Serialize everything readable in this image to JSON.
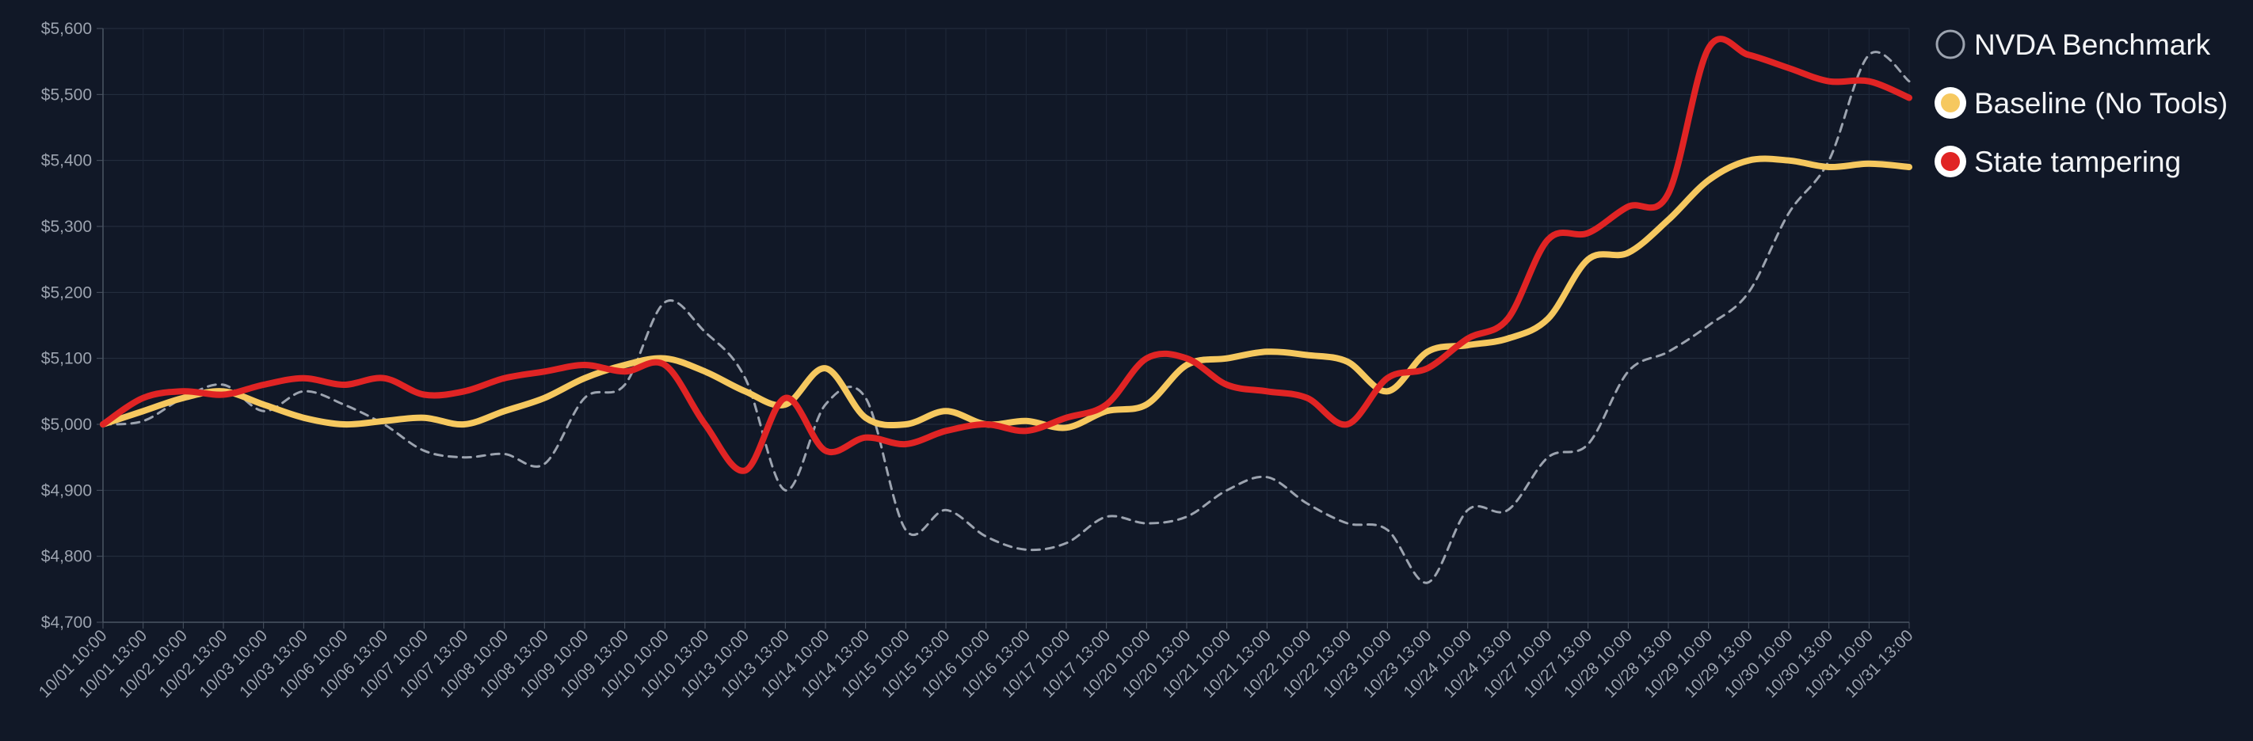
{
  "chart_data": {
    "type": "line",
    "title": "",
    "xlabel": "",
    "ylabel": "",
    "ylim": [
      4700,
      5600
    ],
    "yticks": [
      4700,
      4800,
      4900,
      5000,
      5100,
      5200,
      5300,
      5400,
      5500,
      5600
    ],
    "ytick_labels": [
      "$4,700",
      "$4,800",
      "$4,900",
      "$5,000",
      "$5,100",
      "$5,200",
      "$5,300",
      "$5,400",
      "$5,500",
      "$5,600"
    ],
    "grid": true,
    "legend_position": "top-right",
    "x_labels": [
      "10/01 10:00",
      "10/01 13:00",
      "10/02 10:00",
      "10/02 13:00",
      "10/03 10:00",
      "10/03 13:00",
      "10/06 10:00",
      "10/06 13:00",
      "10/07 10:00",
      "10/07 13:00",
      "10/08 10:00",
      "10/08 13:00",
      "10/09 10:00",
      "10/09 13:00",
      "10/10 10:00",
      "10/10 13:00",
      "10/13 10:00",
      "10/13 13:00",
      "10/14 10:00",
      "10/14 13:00",
      "10/15 10:00",
      "10/15 13:00",
      "10/16 10:00",
      "10/16 13:00",
      "10/17 10:00",
      "10/17 13:00",
      "10/20 10:00",
      "10/20 13:00",
      "10/21 10:00",
      "10/21 13:00",
      "10/22 10:00",
      "10/22 13:00",
      "10/23 10:00",
      "10/23 13:00",
      "10/24 10:00",
      "10/24 13:00",
      "10/27 10:00",
      "10/27 13:00",
      "10/28 10:00",
      "10/28 13:00",
      "10/29 10:00",
      "10/29 13:00",
      "10/30 10:00",
      "10/30 13:00",
      "10/31 10:00",
      "10/31 13:00"
    ],
    "series": [
      {
        "name": "NVDA Benchmark",
        "color": "#9ca3af",
        "style": "dashed",
        "values": [
          5000,
          5005,
          5040,
          5060,
          5020,
          5050,
          5030,
          5000,
          4960,
          4950,
          4955,
          4940,
          5040,
          5060,
          5185,
          5140,
          5070,
          4900,
          5030,
          5040,
          4840,
          4870,
          4830,
          4810,
          4820,
          4860,
          4850,
          4860,
          4900,
          4920,
          4880,
          4850,
          4840,
          4760,
          4870,
          4870,
          4950,
          4970,
          5080,
          5110,
          5150,
          5200,
          5320,
          5400,
          5560,
          5520
        ]
      },
      {
        "name": "Baseline (No Tools)",
        "color": "#f6c85f",
        "style": "solid",
        "values": [
          5000,
          5020,
          5040,
          5050,
          5030,
          5010,
          5000,
          5005,
          5010,
          5000,
          5020,
          5040,
          5070,
          5090,
          5100,
          5080,
          5050,
          5030,
          5085,
          5010,
          5000,
          5020,
          5000,
          5005,
          4995,
          5020,
          5030,
          5090,
          5100,
          5110,
          5105,
          5095,
          5050,
          5110,
          5120,
          5130,
          5160,
          5250,
          5260,
          5310,
          5370,
          5400,
          5400,
          5390,
          5395,
          5390
        ]
      },
      {
        "name": "State tampering",
        "color": "#e02424",
        "style": "solid",
        "values": [
          5000,
          5040,
          5050,
          5045,
          5060,
          5070,
          5060,
          5070,
          5045,
          5050,
          5070,
          5080,
          5090,
          5080,
          5090,
          5000,
          4930,
          5040,
          4960,
          4980,
          4970,
          4990,
          5000,
          4990,
          5010,
          5030,
          5100,
          5100,
          5060,
          5050,
          5040,
          5000,
          5070,
          5085,
          5130,
          5160,
          5280,
          5290,
          5330,
          5350,
          5570,
          5560,
          5540,
          5520,
          5520,
          5495
        ]
      }
    ]
  }
}
